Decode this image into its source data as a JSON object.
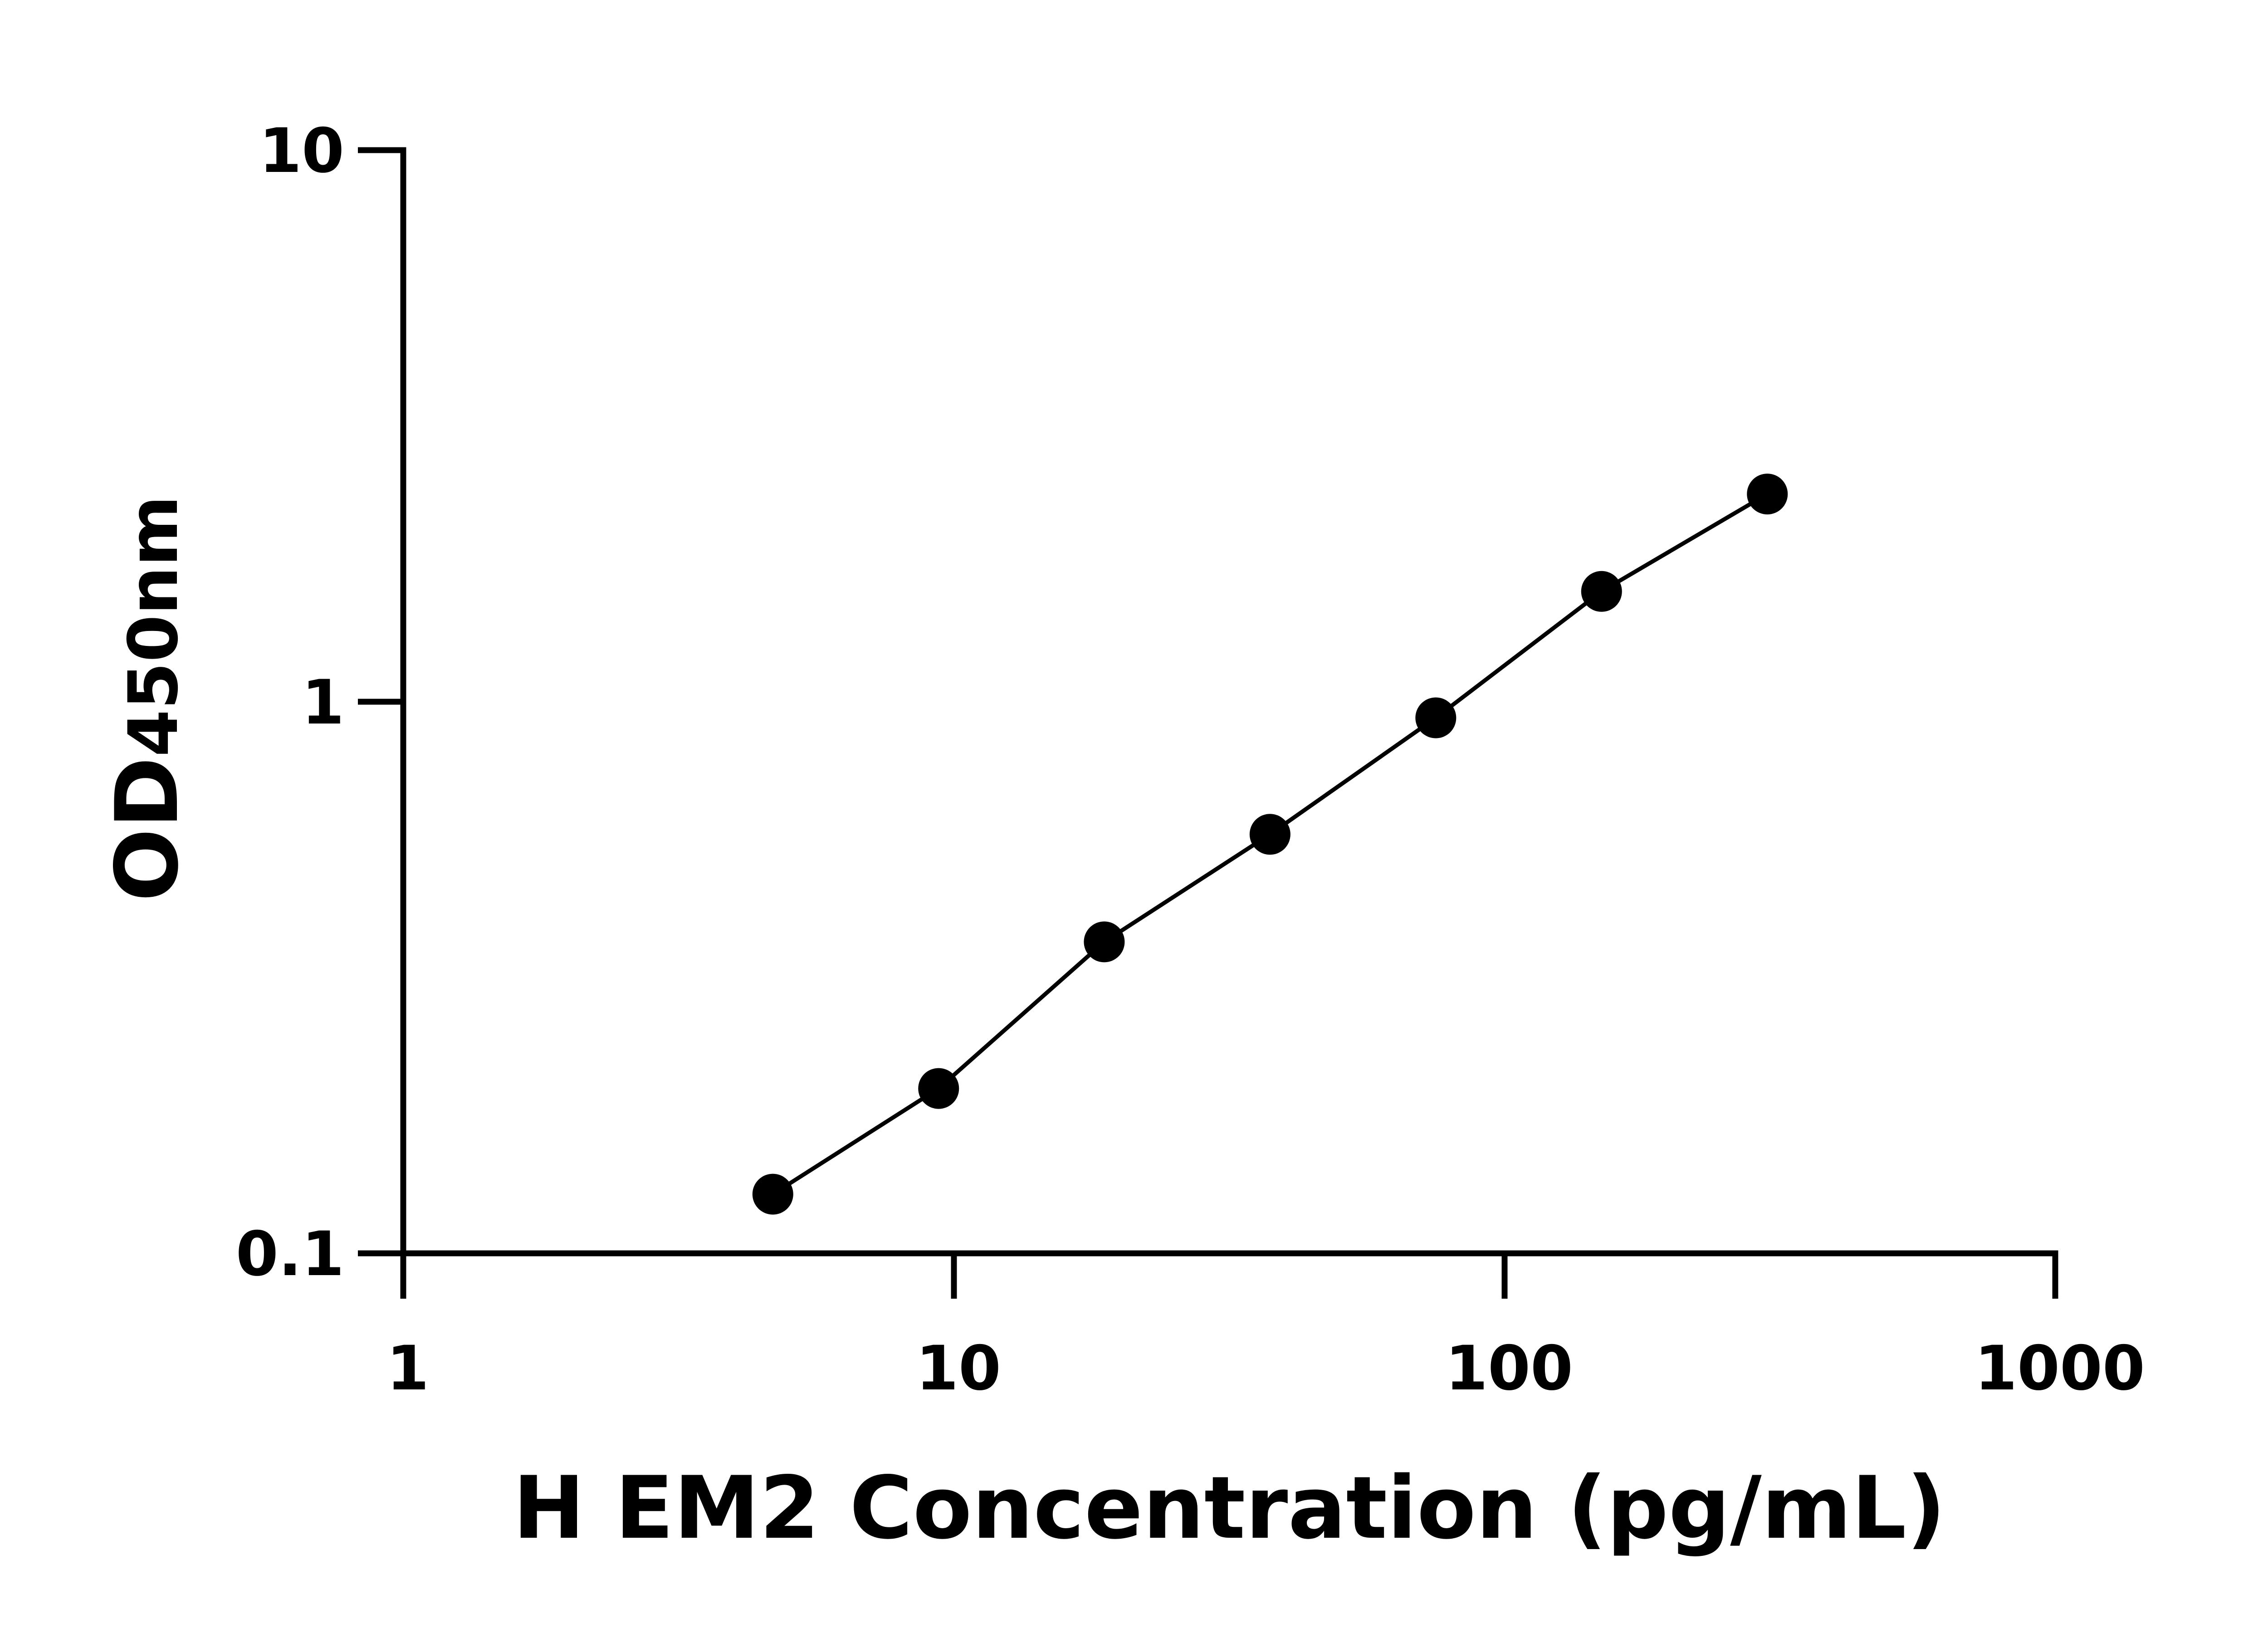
{
  "chart_data": {
    "type": "line",
    "title": "",
    "xlabel": "H EM2 Concentration (pg/mL)",
    "ylabel": {
      "main": "OD",
      "sub": "450nm"
    },
    "x_scale": "log",
    "y_scale": "log",
    "xlim": [
      1,
      1000
    ],
    "ylim": [
      0.1,
      10
    ],
    "x_ticks": [
      1,
      10,
      100,
      1000
    ],
    "x_tick_labels": [
      "1",
      "10",
      "100",
      "1000"
    ],
    "y_ticks": [
      0.1,
      1,
      10
    ],
    "y_tick_labels": [
      "0.1",
      "1",
      "10"
    ],
    "grid": false,
    "legend": "none",
    "series": [
      {
        "x": [
          4.69,
          9.38,
          18.75,
          37.5,
          75,
          150,
          300
        ],
        "y": [
          0.128,
          0.199,
          0.367,
          0.575,
          0.935,
          1.585,
          2.38
        ],
        "color": "#000000",
        "marker": "circle"
      }
    ]
  }
}
